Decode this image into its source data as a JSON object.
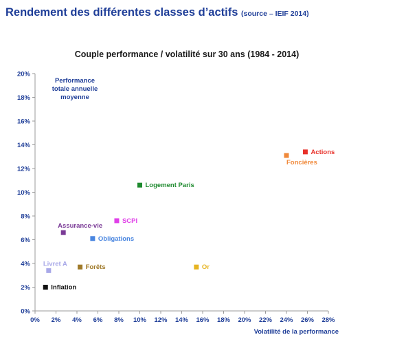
{
  "heading": {
    "main": "Rendement des différentes classes d’actifs",
    "source": "(source – IEIF 2014)"
  },
  "chart_data": {
    "type": "scatter",
    "title": "Couple performance / volatilité sur 30 ans (1984 - 2014)",
    "xlabel": "Volatilité  de la performance",
    "ylabel": "Performance totale annuelle moyenne",
    "ylabel_lines": [
      "Performance",
      "totale annuelle",
      "moyenne"
    ],
    "xlim": [
      0,
      28
    ],
    "ylim": [
      0,
      20
    ],
    "x_ticks": [
      0,
      2,
      4,
      6,
      8,
      10,
      12,
      14,
      16,
      18,
      20,
      22,
      24,
      26,
      28
    ],
    "y_ticks": [
      0,
      2,
      4,
      6,
      8,
      10,
      12,
      14,
      16,
      18,
      20
    ],
    "x_tick_labels": [
      "0%",
      "2%",
      "4%",
      "6%",
      "8%",
      "10%",
      "12%",
      "14%",
      "16%",
      "18%",
      "20%",
      "22%",
      "24%",
      "26%",
      "28%"
    ],
    "y_tick_labels": [
      "0%",
      "2%",
      "4%",
      "6%",
      "8%",
      "10%",
      "12%",
      "14%",
      "16%",
      "18%",
      "20%"
    ],
    "grid": false,
    "legend": "none",
    "points": [
      {
        "label": "Actions",
        "x": 25.8,
        "y": 13.4,
        "color": "#e8312a",
        "label_pos": "right"
      },
      {
        "label": "Foncières",
        "x": 24.0,
        "y": 13.1,
        "color": "#f0893a",
        "label_pos": "below-right"
      },
      {
        "label": "Logement Paris",
        "x": 10.0,
        "y": 10.6,
        "color": "#1e8a2e",
        "label_pos": "right"
      },
      {
        "label": "SCPI",
        "x": 7.8,
        "y": 7.6,
        "color": "#e040e8",
        "label_pos": "right"
      },
      {
        "label": "Assurance-vie",
        "x": 2.7,
        "y": 6.6,
        "color": "#7a3a96",
        "label_pos": "above"
      },
      {
        "label": "Obligations",
        "x": 5.5,
        "y": 6.1,
        "color": "#4a86e0",
        "label_pos": "right"
      },
      {
        "label": "Or",
        "x": 15.4,
        "y": 3.7,
        "color": "#e6b422",
        "label_pos": "right"
      },
      {
        "label": "Forêts",
        "x": 4.3,
        "y": 3.7,
        "color": "#a07a2a",
        "label_pos": "right"
      },
      {
        "label": "Livret A",
        "x": 1.3,
        "y": 3.4,
        "color": "#a8a8e8",
        "label_pos": "above"
      },
      {
        "label": "Inflation",
        "x": 1.0,
        "y": 2.0,
        "color": "#111111",
        "label_pos": "right"
      }
    ]
  }
}
